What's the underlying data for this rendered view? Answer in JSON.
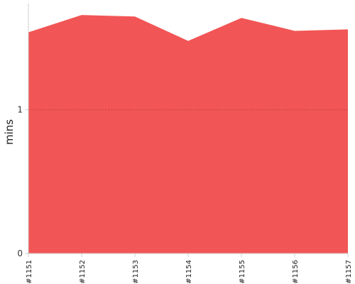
{
  "chart_data": {
    "type": "area",
    "title": "",
    "xlabel": "",
    "ylabel": "mins",
    "categories": [
      "#1151",
      "#1152",
      "#1153",
      "#1154",
      "#1155",
      "#1156",
      "#1157"
    ],
    "series": [
      {
        "values": [
          1.54,
          1.66,
          1.65,
          1.48,
          1.64,
          1.55,
          1.56
        ],
        "color": "#f25555"
      }
    ],
    "ylim": [
      0,
      1.74
    ],
    "yticks": [
      0,
      1
    ],
    "grid": true,
    "legend": "none"
  }
}
